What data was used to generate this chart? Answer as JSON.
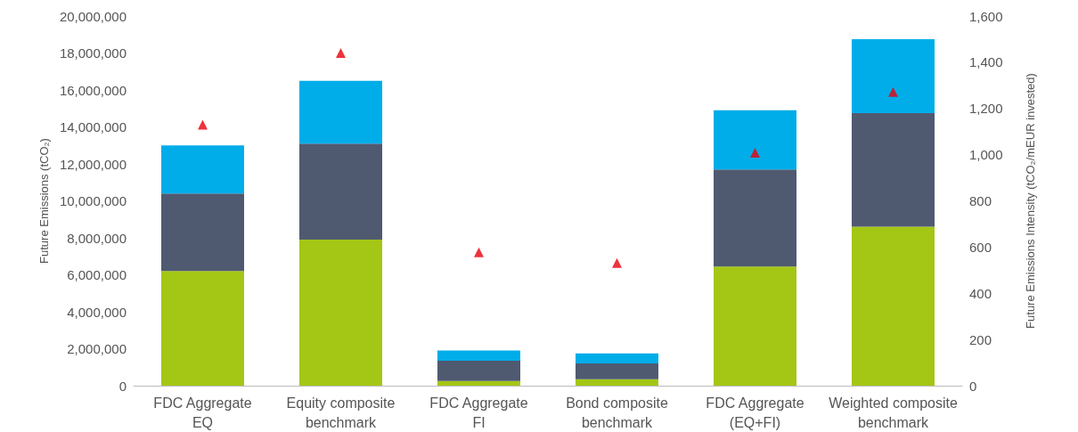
{
  "chart_data": {
    "type": "bar",
    "stacked": true,
    "ylabel": "Future Emissions (tCO₂)",
    "y2label": "Future Emissions Intensity (tCO₂/mEUR invested)",
    "categories": [
      "FDC Aggregate\nEQ",
      "Equity composite\nbenchmark",
      "FDC Aggregate\nFI",
      "Bond composite\nbenchmark",
      "FDC Aggregate\n(EQ+FI)",
      "Weighted composite\nbenchmark"
    ],
    "series": [
      {
        "color": "#a4c615",
        "values": [
          6200000,
          7900000,
          250000,
          350000,
          6450000,
          8600000
        ]
      },
      {
        "color": "#4f5a71",
        "values": [
          4200000,
          5200000,
          1100000,
          850000,
          5250000,
          6150000
        ]
      },
      {
        "color": "#00ade9",
        "values": [
          2600000,
          3400000,
          550000,
          550000,
          3200000,
          4000000
        ]
      },
      {
        "type": "scatter",
        "axis": "y2",
        "marker": "triangle",
        "color": "#e8000d",
        "values": [
          1130,
          1440,
          577,
          531,
          1008,
          1271
        ]
      }
    ],
    "ylim": [
      0,
      20000000
    ],
    "yticks": [
      0,
      {
        "value": 2000000,
        "label": "2,000,000"
      },
      {
        "value": 4000000,
        "label": "4,000,000"
      },
      {
        "value": 6000000,
        "label": "6,000,000"
      },
      {
        "value": 8000000,
        "label": "8,000,000"
      },
      {
        "value": 10000000,
        "label": "10,000,000"
      },
      {
        "value": 12000000,
        "label": "12,000,000"
      },
      {
        "value": 14000000,
        "label": "14,000,000"
      },
      {
        "value": 16000000,
        "label": "16,000,000"
      },
      {
        "value": 18000000,
        "label": "18,000,000"
      },
      {
        "value": 20000000,
        "label": "20,000,000"
      }
    ],
    "y2lim": [
      0,
      1600
    ],
    "y2ticks": [
      0,
      200,
      400,
      600,
      800,
      {
        "value": 1000,
        "label": "1,000"
      },
      {
        "value": 1200,
        "label": "1,200"
      },
      {
        "value": 1400,
        "label": "1,400"
      },
      {
        "value": 1600,
        "label": "1,600"
      }
    ],
    "grid": false
  }
}
